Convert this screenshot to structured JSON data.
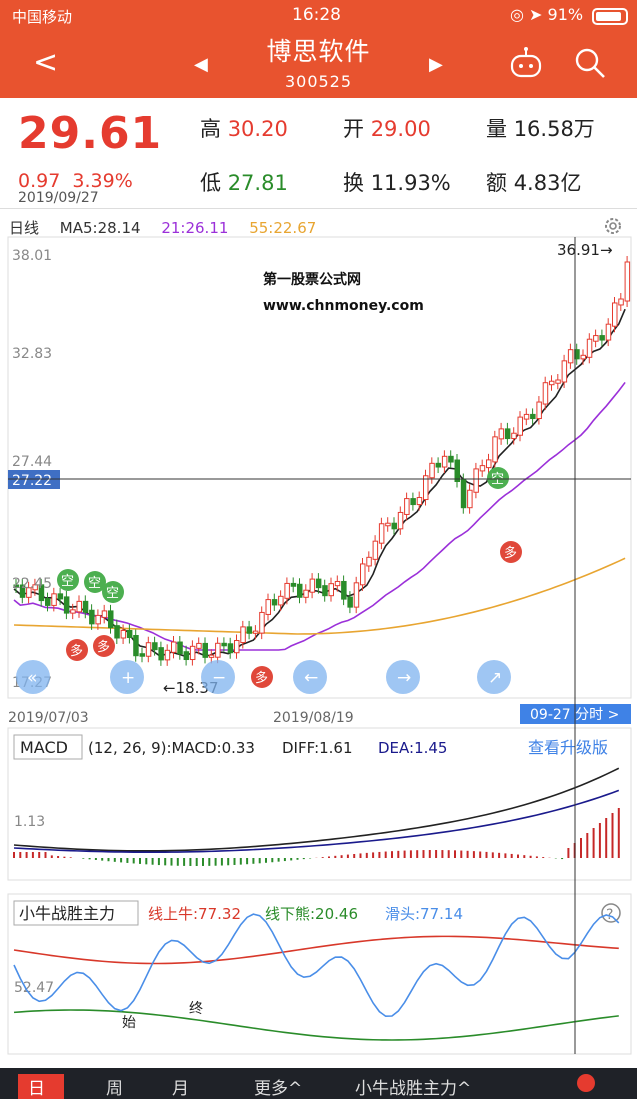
{
  "status": {
    "carrier": "中国移动",
    "time": "16:28",
    "battery": "91%"
  },
  "header": {
    "title": "博思软件",
    "code": "300525"
  },
  "quote": {
    "price": "29.61",
    "change": "0.97",
    "pct": "3.39%",
    "date": "2019/09/27",
    "high_label": "高",
    "high": "30.20",
    "open_label": "开",
    "open": "29.00",
    "vol_label": "量",
    "vol": "16.58万",
    "low_label": "低",
    "low": "27.81",
    "turn_label": "换",
    "turn": "11.93%",
    "amt_label": "额",
    "amt": "4.83亿"
  },
  "kline": {
    "period": "日线",
    "ma5": "MA5:28.14",
    "ma21": "21:26.11",
    "ma55": "55:22.67",
    "y_top": "38.01",
    "y_mid": "32.83",
    "y_low": "22.45",
    "y_bottom": "17.27",
    "y_2744": "27.44",
    "crosshair_value": "27.22",
    "max_label": "36.91→",
    "min_label": "←18.37",
    "watermark1": "第一股票公式网",
    "watermark2": "www.chnmoney.com",
    "date_start": "2019/07/03",
    "date_mid": "2019/08/19",
    "realtime_btn": "09-27 分时 >",
    "kong": "空",
    "duo": "多"
  },
  "macd": {
    "label": "MACD",
    "params": "(12, 26, 9):MACD:0.33",
    "diff": "DIFF:1.61",
    "dea": "DEA:1.45",
    "upgrade": "查看升级版",
    "y_label": "1.13"
  },
  "ind": {
    "name": "小牛战胜主力",
    "bull": "线上牛:77.32",
    "bear": "线下熊:20.46",
    "slide": "滑头:77.14",
    "y_label": "52.47",
    "start": "始",
    "end": "终"
  },
  "tabs": [
    "日",
    "周",
    "月",
    "更多^",
    "小牛战胜主力^"
  ],
  "colors": {
    "brand": "#e8532f",
    "up": "#e53b2f",
    "down": "#2a8c2a",
    "ma21": "#9b30d9",
    "ma55": "#e8a531",
    "macd_dea": "#1a1a8c",
    "ind_blue": "#4a8ee8"
  }
}
